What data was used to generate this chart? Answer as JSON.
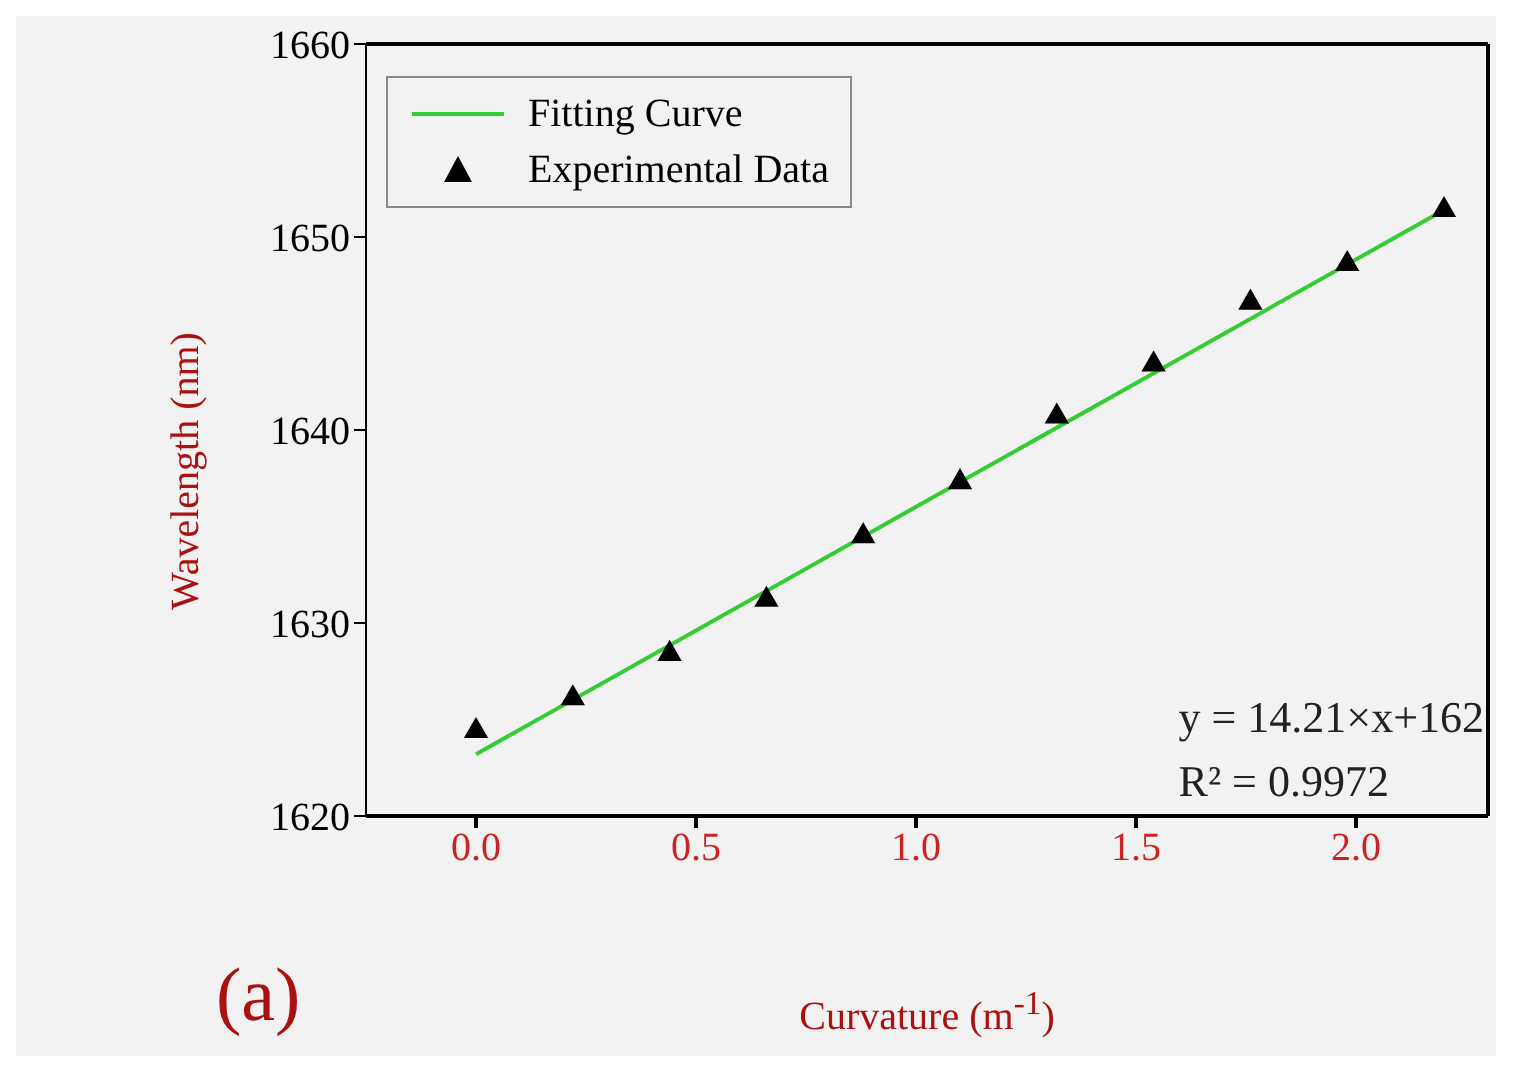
{
  "chart_data": {
    "type": "scatter",
    "xlabel": "Curvature (m$^{-1}$)",
    "ylabel": "Wavelength (nm)",
    "xlim": [
      -0.25,
      2.3
    ],
    "xticks": [
      {
        "value": 0,
        "label": "0.0"
      },
      {
        "value": 0.5,
        "label": "0.5"
      },
      {
        "value": 1,
        "label": "1.0"
      },
      {
        "value": 1.5,
        "label": "1.5"
      },
      {
        "value": 2,
        "label": "2.0"
      }
    ],
    "ylim": [
      1620,
      1660
    ],
    "yticks": [
      1620,
      1630,
      1640,
      1650,
      1660
    ],
    "marker": "triangle",
    "legend": "top left",
    "grid": false,
    "series": [
      {
        "name": "Fitting Curve",
        "type": "line",
        "marker": "none",
        "color": "#33cc33",
        "x": [
          0,
          2.2
        ],
        "values": [
          1623.2,
          1651.4
        ]
      },
      {
        "name": "Experimental Data",
        "color": "#000000",
        "x": [
          0,
          0.22,
          0.44,
          0.66,
          0.88,
          1.1,
          1.32,
          1.54,
          1.76,
          1.98,
          2.2
        ],
        "values": [
          1624.4,
          1626.1,
          1628.4,
          1631.2,
          1634.5,
          1637.3,
          1640.7,
          1643.4,
          1646.6,
          1648.6,
          1651.4
        ]
      }
    ],
    "annotations": [
      "y = 14.21×x+162",
      "R² = 0.9972",
      "(a)"
    ]
  }
}
